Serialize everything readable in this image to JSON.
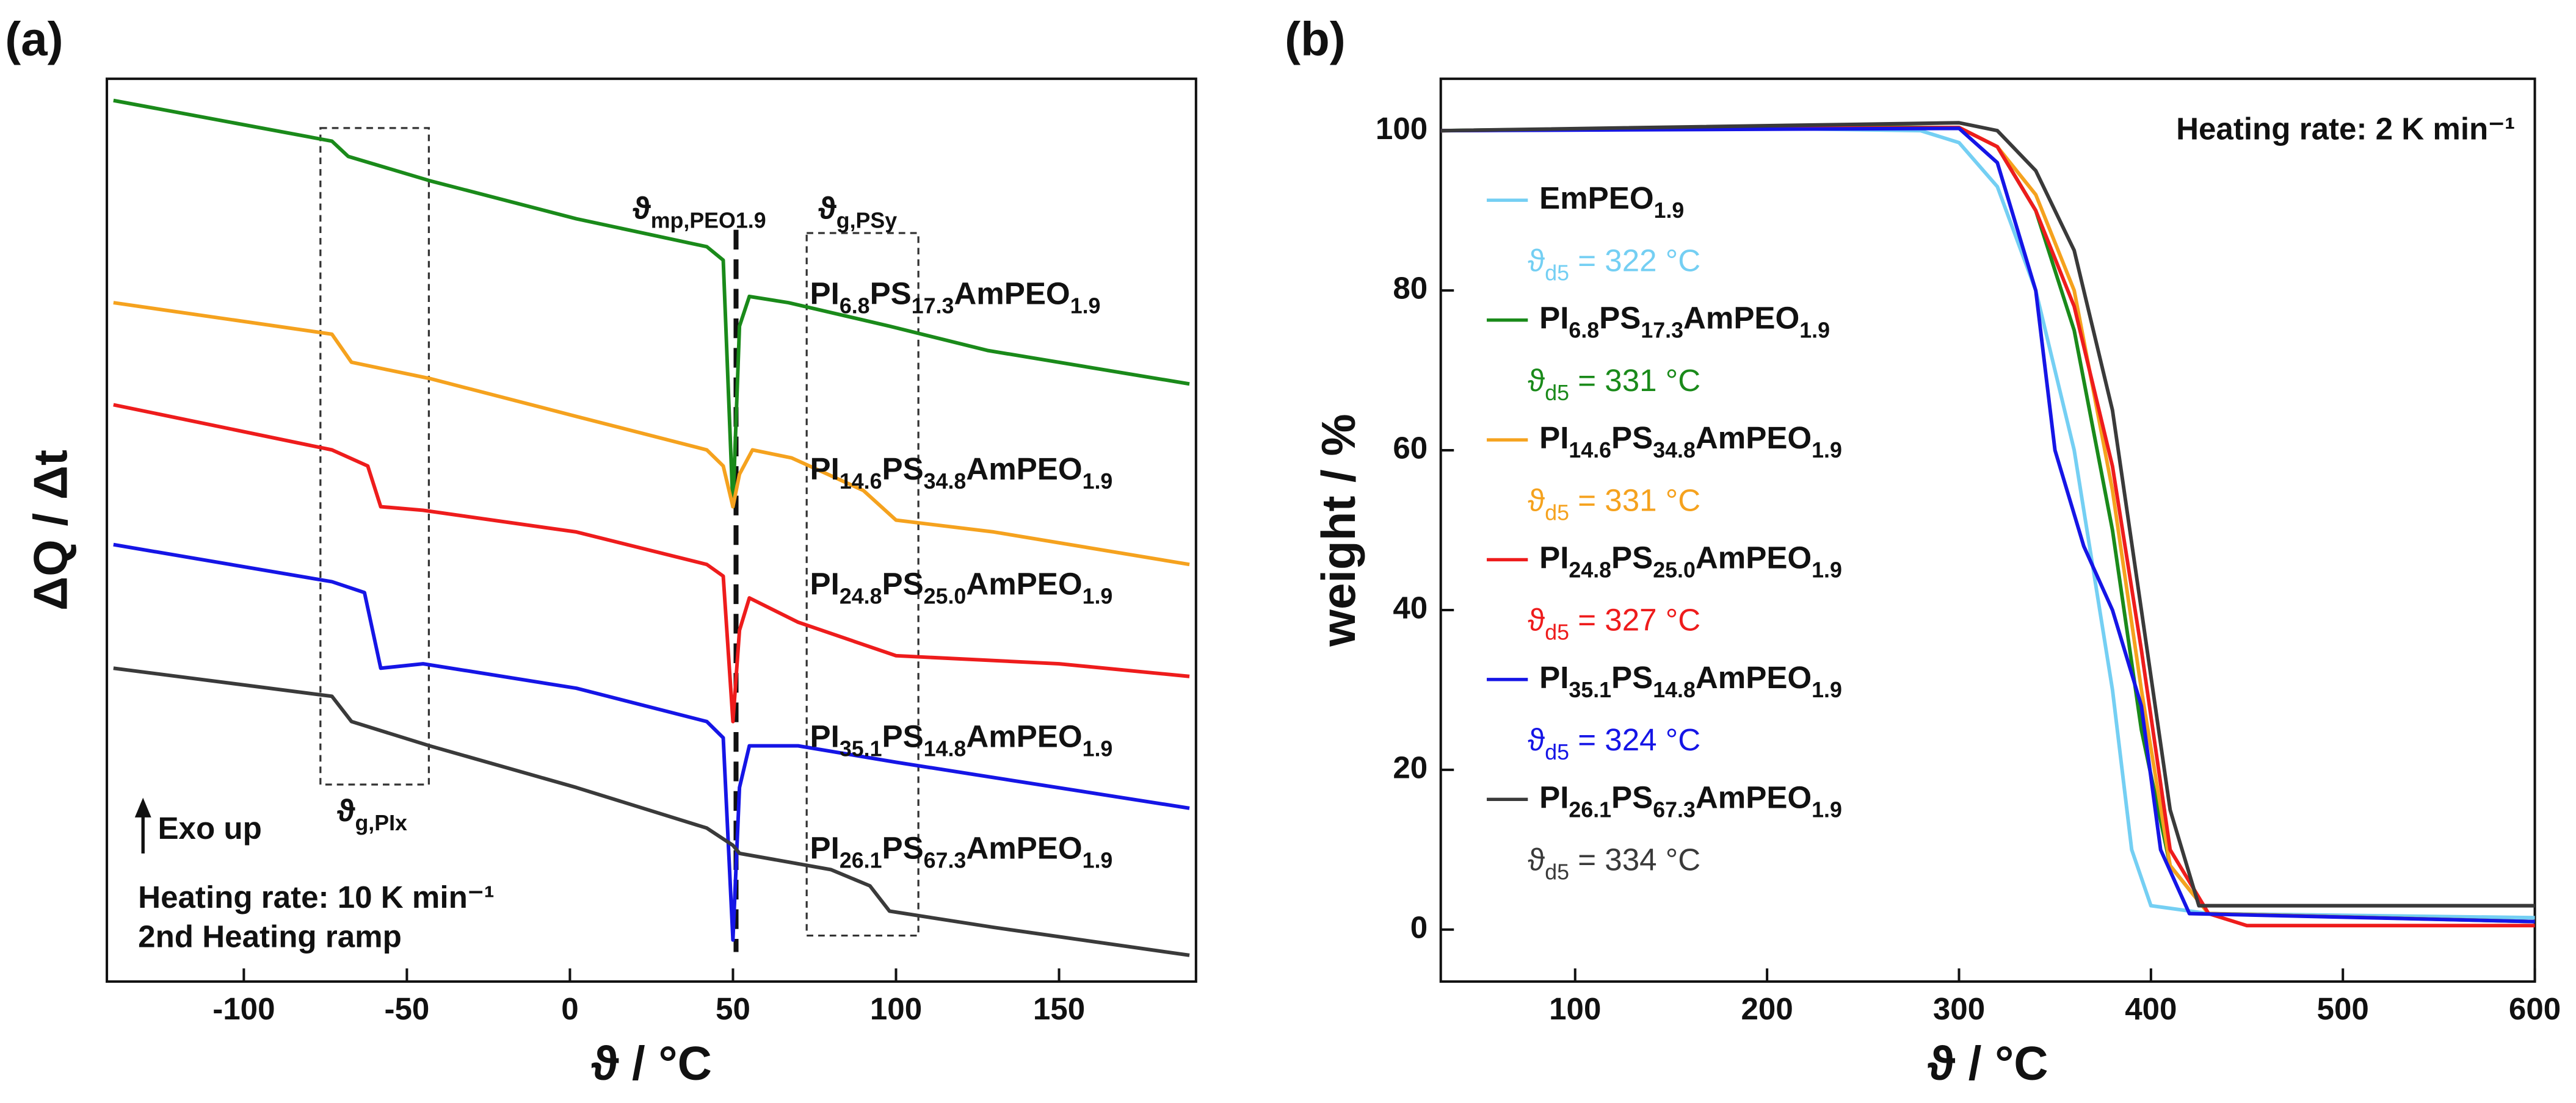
{
  "chart_data": [
    {
      "type": "line",
      "panel_label": "(a)",
      "x_label": "ϑ / °C",
      "y_label": "ΔQ / Δt",
      "xlim": [
        -142,
        192
      ],
      "ylim": [
        0,
        100
      ],
      "xticks": [
        -100,
        -50,
        0,
        50,
        100,
        150
      ],
      "series": [
        {
          "name": "PI6.8PS17.3AmPEO1.9",
          "color": "#1a8a1a",
          "x": [
            -140,
            -73,
            -68,
            -43,
            2,
            42,
            47,
            50,
            52,
            55,
            67,
            98,
            128,
            190
          ],
          "values": [
            97.6,
            93.1,
            91.4,
            88.7,
            84.5,
            81.4,
            79.9,
            52.6,
            72.6,
            75.9,
            75.2,
            72.6,
            69.9,
            66.2
          ]
        },
        {
          "name": "PI14.6PS34.8AmPEO1.9",
          "color": "#f5a21e",
          "x": [
            -140,
            -73,
            -67,
            -43,
            2,
            42,
            47,
            50,
            52,
            56,
            68,
            90,
            100,
            130,
            190
          ],
          "values": [
            75.2,
            71.7,
            68.6,
            66.8,
            62.6,
            58.9,
            57.1,
            52.6,
            56.2,
            58.9,
            58.0,
            54.4,
            51.1,
            49.8,
            46.2
          ]
        },
        {
          "name": "PI24.8PS25.0AmPEO1.9",
          "color": "#ee1c1c",
          "x": [
            -140,
            -73,
            -62,
            -58,
            -45,
            2,
            42,
            47,
            50,
            52,
            55,
            70,
            100,
            150,
            190
          ],
          "values": [
            63.9,
            58.9,
            57.1,
            52.6,
            52.2,
            49.8,
            46.2,
            44.9,
            28.8,
            38.9,
            42.5,
            39.8,
            36.1,
            35.2,
            33.8
          ]
        },
        {
          "name": "PI35.1PS14.8AmPEO1.9",
          "color": "#1515e6",
          "x": [
            -140,
            -73,
            -63,
            -58,
            -45,
            2,
            42,
            47,
            50,
            52,
            55,
            70,
            100,
            190
          ],
          "values": [
            48.4,
            44.3,
            43.1,
            34.7,
            35.2,
            32.5,
            28.8,
            27.0,
            4.6,
            21.5,
            26.1,
            26.1,
            24.3,
            19.2
          ]
        },
        {
          "name": "PI26.1PS67.3AmPEO1.9",
          "color": "#3a3a3a",
          "x": [
            -140,
            -73,
            -67,
            -43,
            2,
            42,
            50,
            52,
            80,
            92,
            98,
            130,
            190
          ],
          "values": [
            34.7,
            31.6,
            28.8,
            26.1,
            21.5,
            17.0,
            15.1,
            14.2,
            12.4,
            10.6,
            7.8,
            6.0,
            2.9
          ]
        }
      ],
      "annotations": [
        "ϑmp,PEO1.9",
        "ϑg,PSy",
        "ϑg,PIx",
        "Exo up",
        "Heating rate: 10 K min⁻¹",
        "2nd Heating ramp"
      ]
    },
    {
      "type": "line",
      "panel_label": "(b)",
      "x_label": "ϑ / °C",
      "y_label": "weight / %",
      "xlim": [
        30,
        600
      ],
      "ylim": [
        -6.5,
        106.5
      ],
      "xticks": [
        100,
        200,
        300,
        400,
        500,
        600
      ],
      "yticks": [
        0,
        20,
        40,
        60,
        80,
        100
      ],
      "annotation": "Heating rate: 2 K min⁻¹",
      "series": [
        {
          "name": "EmPEO1.9",
          "label": "ϑd5 = 322 °C",
          "color": "#74cff3",
          "x": [
            30,
            200,
            280,
            300,
            320,
            340,
            360,
            380,
            390,
            400,
            430,
            600
          ],
          "values": [
            100,
            100.3,
            100,
            98.5,
            93,
            80,
            60,
            30,
            10,
            3,
            2,
            1.5
          ]
        },
        {
          "name": "PI6.8PS17.3AmPEO1.9",
          "label": "ϑd5 = 331 °C",
          "color": "#1a8a1a",
          "x": [
            30,
            200,
            300,
            320,
            340,
            360,
            380,
            395,
            410,
            430,
            600
          ],
          "values": [
            100,
            100.5,
            100.4,
            98,
            90,
            75,
            50,
            25,
            8,
            2,
            1
          ]
        },
        {
          "name": "PI14.6PS34.8AmPEO1.9",
          "label": "ϑd5 = 331 °C",
          "color": "#f5a21e",
          "x": [
            30,
            300,
            320,
            340,
            360,
            380,
            395,
            410,
            430,
            600
          ],
          "values": [
            100,
            100.4,
            98,
            92,
            80,
            55,
            30,
            8,
            2,
            1
          ]
        },
        {
          "name": "PI24.8PS25.0AmPEO1.9",
          "label": "ϑd5 = 327 °C",
          "color": "#ee1c1c",
          "x": [
            30,
            300,
            320,
            340,
            360,
            380,
            395,
            410,
            430,
            450,
            600
          ],
          "values": [
            100,
            100.4,
            98,
            90,
            78,
            58,
            35,
            10,
            2,
            0.5,
            0.5
          ]
        },
        {
          "name": "PI35.1PS14.8AmPEO1.9",
          "label": "ϑd5 = 324 °C",
          "color": "#1515e6",
          "x": [
            30,
            300,
            320,
            340,
            350,
            365,
            380,
            395,
            405,
            420,
            600
          ],
          "values": [
            100,
            100.3,
            96,
            80,
            60,
            48,
            40,
            28,
            10,
            2,
            1
          ]
        },
        {
          "name": "PI26.1PS67.3AmPEO1.9",
          "label": "ϑd5 = 334 °C",
          "color": "#3a3a3a",
          "x": [
            30,
            300,
            320,
            340,
            360,
            380,
            395,
            410,
            425,
            600
          ],
          "values": [
            100,
            101,
            100,
            95,
            85,
            65,
            40,
            15,
            3,
            3
          ]
        }
      ]
    }
  ]
}
